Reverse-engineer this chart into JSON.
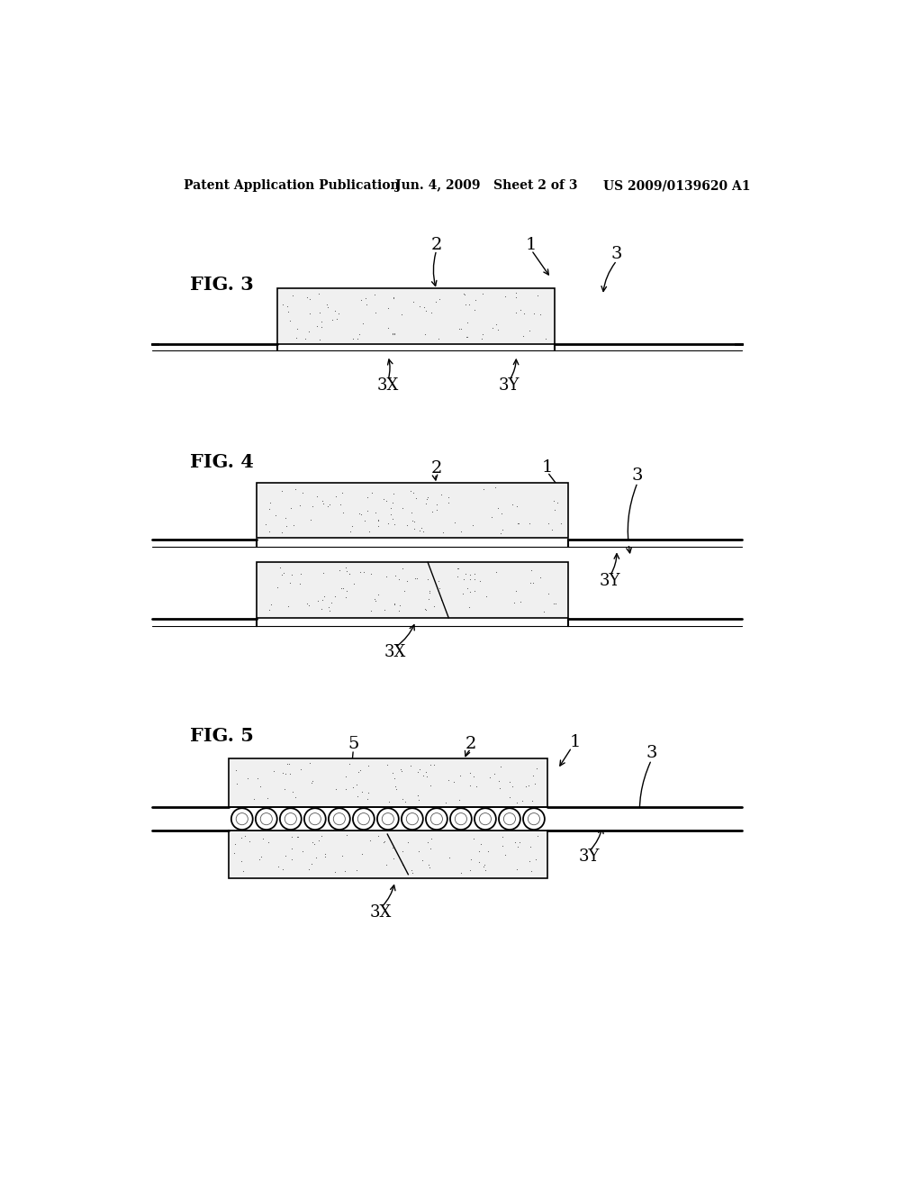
{
  "bg_color": "#ffffff",
  "header_left": "Patent Application Publication",
  "header_mid": "Jun. 4, 2009   Sheet 2 of 3",
  "header_right": "US 2009/0139620 A1",
  "fig3_label": "FIG. 3",
  "fig4_label": "FIG. 4",
  "fig5_label": "FIG. 5",
  "dot_color": "#777777",
  "line_color": "#000000",
  "rect_fill": "#e8e8e8",
  "rect_edge": "#000000",
  "label_fontsize": 15,
  "ref_fontsize": 14,
  "header_fontsize": 10
}
